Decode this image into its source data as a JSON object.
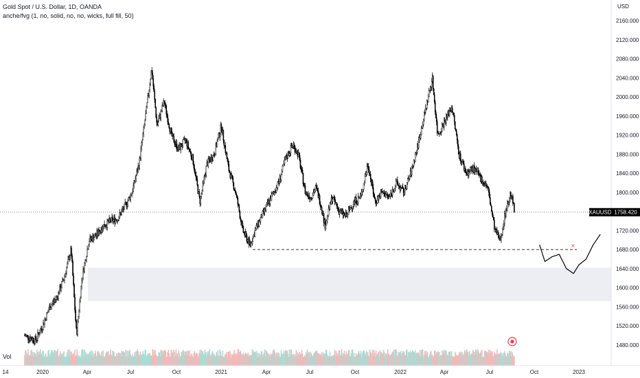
{
  "legend": {
    "symbol_line": "Gold Spot / U.S. Dollar, 1D, OANDA",
    "indicator_line": "anche/fvg (1, no, solid, no, no, wicks, full fill, 50)"
  },
  "volume_label": "Vol",
  "currency": "USD",
  "symbol_tag": "XAUUSD",
  "last_price_text": "1758.420",
  "colors": {
    "candle": "#000000",
    "vol_up": "#a8dcd5",
    "vol_down": "#f4b8b8",
    "zone_fill": "#eceef3",
    "label_bg": "#000000",
    "dashed": "#333333"
  },
  "chart_data": {
    "type": "candlestick",
    "x_ticks": [
      "14",
      "2020",
      "Apr",
      "Jul",
      "Oct",
      "2021",
      "Apr",
      "Jul",
      "Oct",
      "2022",
      "Apr",
      "Jul",
      "Oct",
      "2023"
    ],
    "y_ticks": [
      "2160.000",
      "2120.000",
      "2080.000",
      "2040.000",
      "2000.000",
      "1960.000",
      "1920.000",
      "1880.000",
      "1840.000",
      "1800.000",
      "1760.000",
      "1720.000",
      "1680.000",
      "1640.000",
      "1600.000",
      "1560.000",
      "1520.000",
      "1480.000"
    ],
    "ylim": [
      1468,
      2190
    ],
    "last_price": 1758.42,
    "price_path": [
      [
        2019.9,
        1500
      ],
      [
        2019.96,
        1490
      ],
      [
        2020.0,
        1520
      ],
      [
        2020.04,
        1560
      ],
      [
        2020.08,
        1580
      ],
      [
        2020.12,
        1620
      ],
      [
        2020.16,
        1680
      ],
      [
        2020.19,
        1500
      ],
      [
        2020.22,
        1620
      ],
      [
        2020.26,
        1700
      ],
      [
        2020.3,
        1710
      ],
      [
        2020.34,
        1730
      ],
      [
        2020.38,
        1740
      ],
      [
        2020.42,
        1745
      ],
      [
        2020.46,
        1770
      ],
      [
        2020.5,
        1800
      ],
      [
        2020.54,
        1860
      ],
      [
        2020.58,
        1970
      ],
      [
        2020.61,
        2060
      ],
      [
        2020.64,
        1940
      ],
      [
        2020.68,
        1990
      ],
      [
        2020.72,
        1920
      ],
      [
        2020.76,
        1890
      ],
      [
        2020.8,
        1910
      ],
      [
        2020.84,
        1870
      ],
      [
        2020.88,
        1780
      ],
      [
        2020.92,
        1860
      ],
      [
        2020.96,
        1880
      ],
      [
        2021.0,
        1940
      ],
      [
        2021.04,
        1850
      ],
      [
        2021.08,
        1800
      ],
      [
        2021.12,
        1720
      ],
      [
        2021.16,
        1690
      ],
      [
        2021.2,
        1730
      ],
      [
        2021.24,
        1760
      ],
      [
        2021.28,
        1790
      ],
      [
        2021.32,
        1820
      ],
      [
        2021.36,
        1870
      ],
      [
        2021.4,
        1900
      ],
      [
        2021.43,
        1880
      ],
      [
        2021.47,
        1800
      ],
      [
        2021.5,
        1790
      ],
      [
        2021.53,
        1810
      ],
      [
        2021.56,
        1770
      ],
      [
        2021.58,
        1730
      ],
      [
        2021.62,
        1790
      ],
      [
        2021.66,
        1760
      ],
      [
        2021.7,
        1750
      ],
      [
        2021.74,
        1780
      ],
      [
        2021.78,
        1790
      ],
      [
        2021.82,
        1860
      ],
      [
        2021.86,
        1780
      ],
      [
        2021.9,
        1800
      ],
      [
        2021.94,
        1790
      ],
      [
        2021.98,
        1820
      ],
      [
        2022.02,
        1800
      ],
      [
        2022.06,
        1840
      ],
      [
        2022.1,
        1900
      ],
      [
        2022.14,
        1970
      ],
      [
        2022.18,
        2040
      ],
      [
        2022.21,
        1920
      ],
      [
        2022.25,
        1950
      ],
      [
        2022.29,
        1980
      ],
      [
        2022.33,
        1880
      ],
      [
        2022.37,
        1840
      ],
      [
        2022.41,
        1850
      ],
      [
        2022.45,
        1830
      ],
      [
        2022.49,
        1810
      ],
      [
        2022.53,
        1720
      ],
      [
        2022.56,
        1700
      ],
      [
        2022.59,
        1760
      ],
      [
        2022.62,
        1800
      ],
      [
        2022.64,
        1758
      ]
    ],
    "demand_zone": [
      1572,
      1642
    ],
    "support_level": 1680,
    "projection_path": [
      [
        2022.78,
        1690
      ],
      [
        2022.81,
        1655
      ],
      [
        2022.85,
        1665
      ],
      [
        2022.89,
        1670
      ],
      [
        2022.93,
        1640
      ],
      [
        2022.97,
        1630
      ],
      [
        2023.0,
        1648
      ],
      [
        2023.04,
        1660
      ],
      [
        2023.08,
        1690
      ],
      [
        2023.12,
        1712
      ]
    ]
  }
}
